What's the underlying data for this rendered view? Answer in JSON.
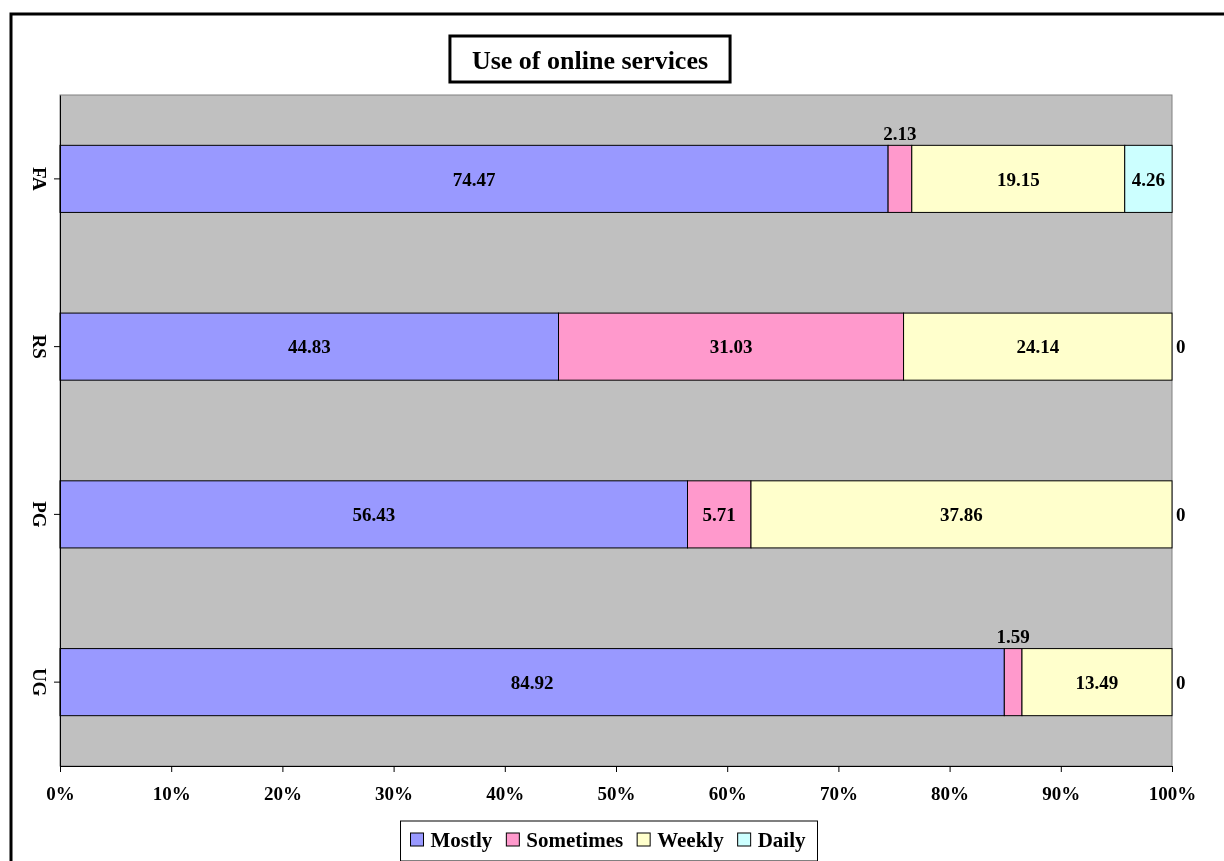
{
  "chart_data": {
    "type": "bar",
    "title": "Use of online services",
    "orientation": "horizontal",
    "stacked": true,
    "categories": [
      "FA",
      "RS",
      "PG",
      "UG"
    ],
    "series": [
      {
        "name": "Mostly",
        "color": "#9999ff",
        "values": [
          74.47,
          44.83,
          56.43,
          84.92
        ]
      },
      {
        "name": "Sometimes",
        "color": "#ff99cc",
        "values": [
          2.13,
          31.03,
          5.71,
          1.59
        ]
      },
      {
        "name": "Weekly",
        "color": "#ffffcc",
        "values": [
          19.15,
          24.14,
          37.86,
          13.49
        ]
      },
      {
        "name": "Daily",
        "color": "#ccffff",
        "values": [
          4.26,
          0,
          0,
          0
        ]
      }
    ],
    "xlim": [
      0,
      100
    ],
    "xticks": [
      {
        "value": 0,
        "label": "0%"
      },
      {
        "value": 10,
        "label": "10%"
      },
      {
        "value": 20,
        "label": "20%"
      },
      {
        "value": 30,
        "label": "30%"
      },
      {
        "value": 40,
        "label": "40%"
      },
      {
        "value": 50,
        "label": "50%"
      },
      {
        "value": 60,
        "label": "60%"
      },
      {
        "value": 70,
        "label": "70%"
      },
      {
        "value": 80,
        "label": "80%"
      },
      {
        "value": 90,
        "label": "90%"
      },
      {
        "value": 100,
        "label": "100%"
      }
    ],
    "data_labels": true,
    "legend": "bottom",
    "grid": false
  }
}
